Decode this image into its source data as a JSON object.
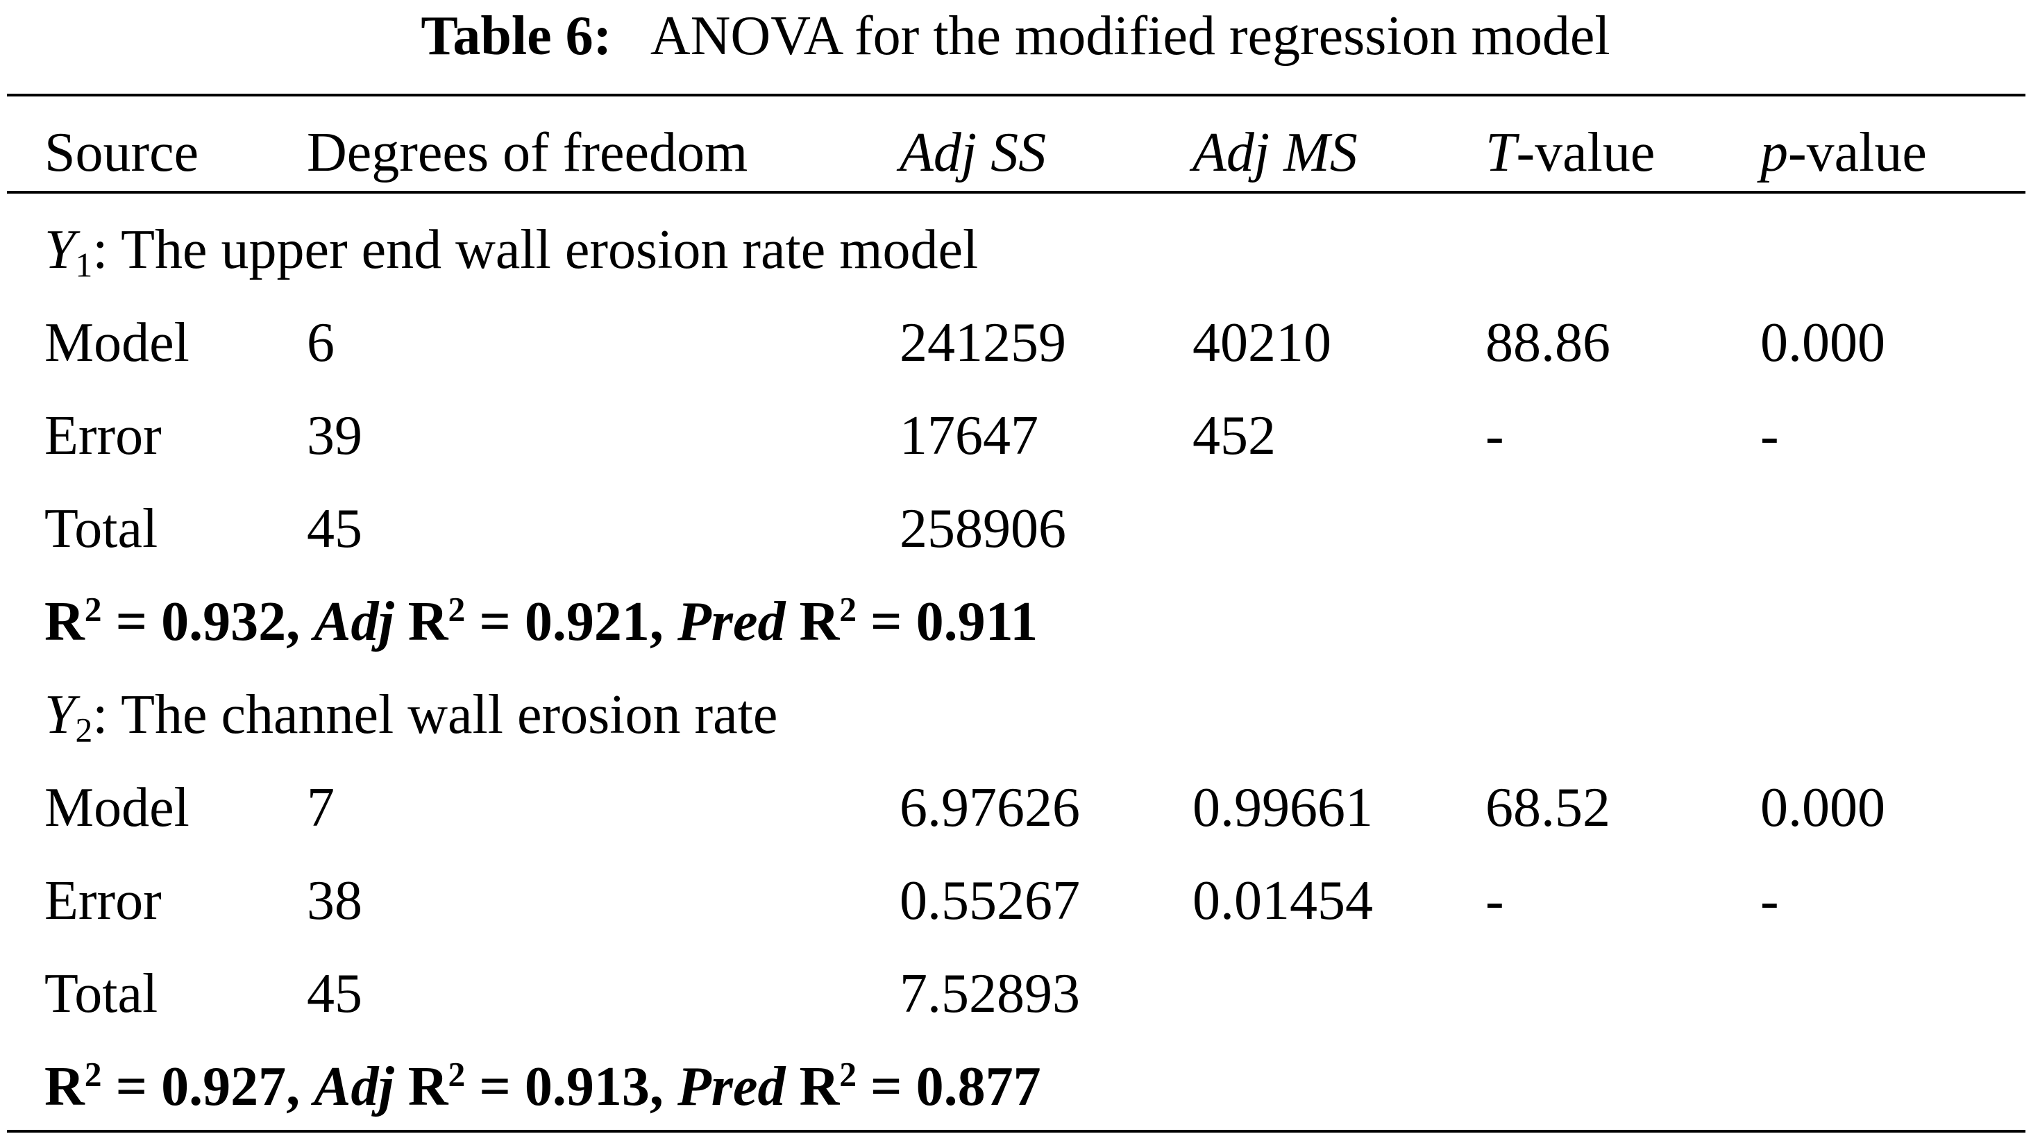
{
  "caption": {
    "label": "Table 6:",
    "text": "ANOVA for the modified regression model"
  },
  "header": {
    "source": "Source",
    "dof": "Degrees of freedom",
    "adj_ss": "Adj SS",
    "adj_ms": "Adj MS",
    "t_prefix": "T",
    "t_suffix": "-value",
    "p_prefix": "p",
    "p_suffix": "-value"
  },
  "y1": {
    "var": "Y",
    "sub": "1",
    "title": ": The upper end wall erosion rate model",
    "rows": [
      {
        "source": "Model",
        "dof": "6",
        "adj_ss": "241259",
        "adj_ms": "40210",
        "t": "88.86",
        "p": "0.000"
      },
      {
        "source": "Error",
        "dof": "39",
        "adj_ss": "17647",
        "adj_ms": "452",
        "t": "-",
        "p": "-"
      },
      {
        "source": "Total",
        "dof": "45",
        "adj_ss": "258906",
        "adj_ms": "",
        "t": "",
        "p": ""
      }
    ],
    "fit": {
      "r2_label": "R",
      "r2_eq": " = 0.932, ",
      "adj_word": "Adj",
      "adj_label": " R",
      "adj_eq": " = 0.921, ",
      "pred_word": "Pred",
      "pred_label": " R",
      "pred_eq": " = 0.911",
      "exp": "2"
    }
  },
  "y2": {
    "var": "Y",
    "sub": "2",
    "title": ": The channel wall erosion rate",
    "rows": [
      {
        "source": "Model",
        "dof": "7",
        "adj_ss": "6.97626",
        "adj_ms": "0.99661",
        "t": "68.52",
        "p": "0.000"
      },
      {
        "source": "Error",
        "dof": "38",
        "adj_ss": "0.55267",
        "adj_ms": "0.01454",
        "t": "-",
        "p": "-"
      },
      {
        "source": "Total",
        "dof": "45",
        "adj_ss": "7.52893",
        "adj_ms": "",
        "t": "",
        "p": ""
      }
    ],
    "fit": {
      "r2_label": "R",
      "r2_eq": " = 0.927, ",
      "adj_word": "Adj",
      "adj_label": " R",
      "adj_eq": " = 0.913, ",
      "pred_word": "Pred",
      "pred_label": " R",
      "pred_eq": " = 0.877",
      "exp": "2"
    }
  }
}
